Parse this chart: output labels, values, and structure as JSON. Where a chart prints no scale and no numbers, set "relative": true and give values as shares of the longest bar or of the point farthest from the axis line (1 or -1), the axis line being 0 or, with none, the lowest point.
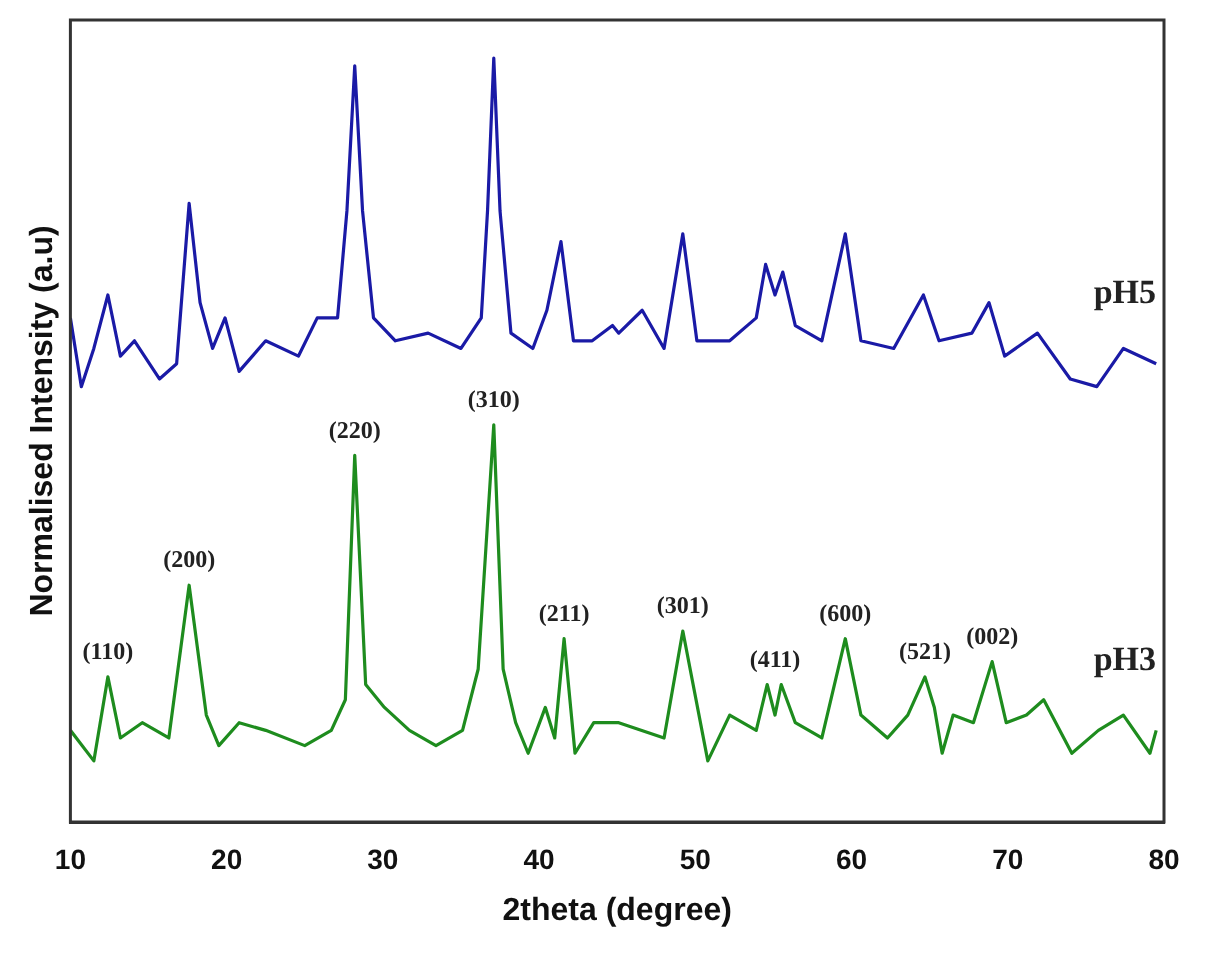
{
  "chart_data": {
    "type": "line",
    "xlabel": "2theta (degree)",
    "ylabel": "Normalised Intensity (a.u)",
    "relative": true,
    "xlim": [
      10,
      80
    ],
    "xticks": [
      10,
      20,
      30,
      40,
      50,
      60,
      70,
      80
    ],
    "grid": false,
    "legend": false,
    "marker": "none",
    "line_style": "solid",
    "series": [
      {
        "name": "pH5",
        "color": "#1a1aa6",
        "x": [
          10,
          10.7,
          11.5,
          12.4,
          13.2,
          14.1,
          15.7,
          16.8,
          17.6,
          18.3,
          19.1,
          19.9,
          20.8,
          22.5,
          24.6,
          25.8,
          27.1,
          27.7,
          28.2,
          28.7,
          29.4,
          30.8,
          32.9,
          35.0,
          36.3,
          36.7,
          37.1,
          37.5,
          38.2,
          39.6,
          40.5,
          41.4,
          42.2,
          43.4,
          44.7,
          45.1,
          46.6,
          48.0,
          49.2,
          50.1,
          52.2,
          53.9,
          54.5,
          55.1,
          55.6,
          56.4,
          58.1,
          59.6,
          60.6,
          62.7,
          64.6,
          65.6,
          67.7,
          68.8,
          69.8,
          71.9,
          74.0,
          75.7,
          77.4,
          79.5
        ],
        "values": [
          0.66,
          0.57,
          0.62,
          0.69,
          0.61,
          0.63,
          0.58,
          0.6,
          0.81,
          0.68,
          0.62,
          0.66,
          0.59,
          0.63,
          0.61,
          0.66,
          0.66,
          0.8,
          0.99,
          0.8,
          0.66,
          0.63,
          0.64,
          0.62,
          0.66,
          0.8,
          1.0,
          0.8,
          0.64,
          0.62,
          0.67,
          0.76,
          0.63,
          0.63,
          0.65,
          0.64,
          0.67,
          0.62,
          0.77,
          0.63,
          0.63,
          0.66,
          0.73,
          0.69,
          0.72,
          0.65,
          0.63,
          0.77,
          0.63,
          0.62,
          0.69,
          0.63,
          0.64,
          0.68,
          0.61,
          0.64,
          0.58,
          0.57,
          0.62,
          0.6
        ]
      },
      {
        "name": "pH3",
        "color": "#1e8c1e",
        "x": [
          10,
          11.5,
          12.4,
          13.2,
          14.6,
          16.3,
          17.6,
          18.7,
          19.5,
          20.8,
          22.5,
          25.0,
          26.7,
          27.6,
          28.2,
          28.9,
          30.1,
          31.7,
          33.4,
          35.1,
          36.1,
          37.1,
          37.7,
          38.5,
          39.3,
          40.4,
          41.0,
          41.6,
          42.3,
          43.5,
          45.1,
          48.0,
          49.2,
          50.8,
          52.2,
          53.9,
          54.6,
          55.1,
          55.5,
          56.4,
          58.1,
          59.6,
          60.6,
          62.3,
          63.6,
          64.7,
          65.3,
          65.8,
          66.5,
          67.8,
          69.0,
          69.9,
          71.2,
          72.3,
          74.1,
          75.8,
          77.4,
          79.1,
          79.5
        ],
        "values": [
          0.12,
          0.08,
          0.19,
          0.11,
          0.13,
          0.11,
          0.31,
          0.14,
          0.1,
          0.13,
          0.12,
          0.1,
          0.12,
          0.16,
          0.48,
          0.18,
          0.15,
          0.12,
          0.1,
          0.12,
          0.2,
          0.52,
          0.2,
          0.13,
          0.09,
          0.15,
          0.11,
          0.24,
          0.09,
          0.13,
          0.13,
          0.11,
          0.25,
          0.08,
          0.14,
          0.12,
          0.18,
          0.14,
          0.18,
          0.13,
          0.11,
          0.24,
          0.14,
          0.11,
          0.14,
          0.19,
          0.15,
          0.09,
          0.14,
          0.13,
          0.21,
          0.13,
          0.14,
          0.16,
          0.09,
          0.12,
          0.14,
          0.09,
          0.12
        ]
      }
    ],
    "annotations": [
      {
        "text": "(110)",
        "x": 12.4,
        "y": 0.19
      },
      {
        "text": "(200)",
        "x": 17.6,
        "y": 0.31
      },
      {
        "text": "(220)",
        "x": 28.2,
        "y": 0.48
      },
      {
        "text": "(310)",
        "x": 37.1,
        "y": 0.52
      },
      {
        "text": "(211)",
        "x": 41.6,
        "y": 0.24
      },
      {
        "text": "(301)",
        "x": 49.2,
        "y": 0.25
      },
      {
        "text": "(411)",
        "x": 55.1,
        "y": 0.18
      },
      {
        "text": "(600)",
        "x": 59.6,
        "y": 0.24
      },
      {
        "text": "(521)",
        "x": 64.7,
        "y": 0.19
      },
      {
        "text": "(002)",
        "x": 69.0,
        "y": 0.21
      }
    ]
  }
}
